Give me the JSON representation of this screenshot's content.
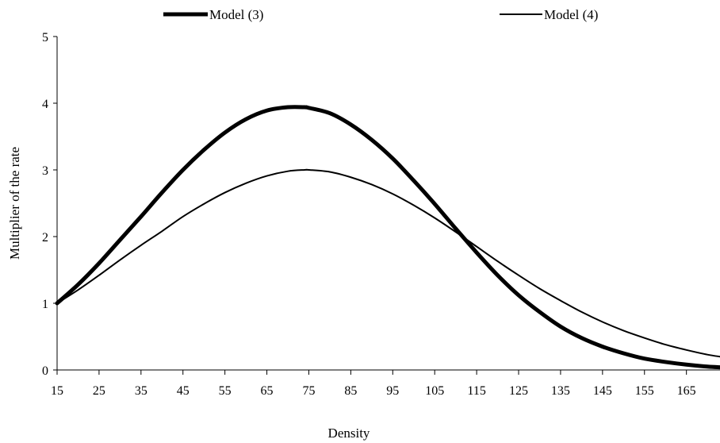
{
  "chart_data": {
    "type": "line",
    "title": "",
    "xlabel": "Density",
    "ylabel": "Multiplier of the rate",
    "xlim": [
      15,
      173
    ],
    "ylim": [
      0,
      5
    ],
    "x_ticks": [
      15,
      25,
      35,
      45,
      55,
      65,
      75,
      85,
      95,
      105,
      115,
      125,
      135,
      145,
      155,
      165
    ],
    "y_ticks": [
      0,
      1,
      2,
      3,
      4,
      5
    ],
    "grid": false,
    "legend_position": "top",
    "x": [
      15,
      20,
      25,
      30,
      35,
      40,
      45,
      50,
      55,
      60,
      65,
      70,
      74,
      75,
      80,
      85,
      90,
      95,
      100,
      105,
      110,
      115,
      120,
      125,
      130,
      135,
      140,
      145,
      150,
      155,
      160,
      165,
      170,
      173
    ],
    "series": [
      {
        "name": "Model (3)",
        "color": "#000000",
        "style": "thick",
        "values": [
          1.0,
          1.28,
          1.6,
          1.95,
          2.3,
          2.66,
          3.0,
          3.3,
          3.56,
          3.76,
          3.89,
          3.94,
          3.94,
          3.93,
          3.85,
          3.68,
          3.45,
          3.17,
          2.84,
          2.49,
          2.12,
          1.76,
          1.42,
          1.12,
          0.87,
          0.65,
          0.48,
          0.35,
          0.25,
          0.17,
          0.12,
          0.08,
          0.05,
          0.04
        ]
      },
      {
        "name": "Model (4)",
        "color": "#000000",
        "style": "thin",
        "values": [
          1.0,
          1.2,
          1.42,
          1.65,
          1.87,
          2.08,
          2.3,
          2.49,
          2.66,
          2.8,
          2.91,
          2.98,
          3.0,
          3.0,
          2.97,
          2.89,
          2.78,
          2.64,
          2.47,
          2.28,
          2.07,
          1.85,
          1.63,
          1.42,
          1.22,
          1.04,
          0.87,
          0.72,
          0.59,
          0.48,
          0.38,
          0.3,
          0.23,
          0.2
        ]
      }
    ]
  }
}
